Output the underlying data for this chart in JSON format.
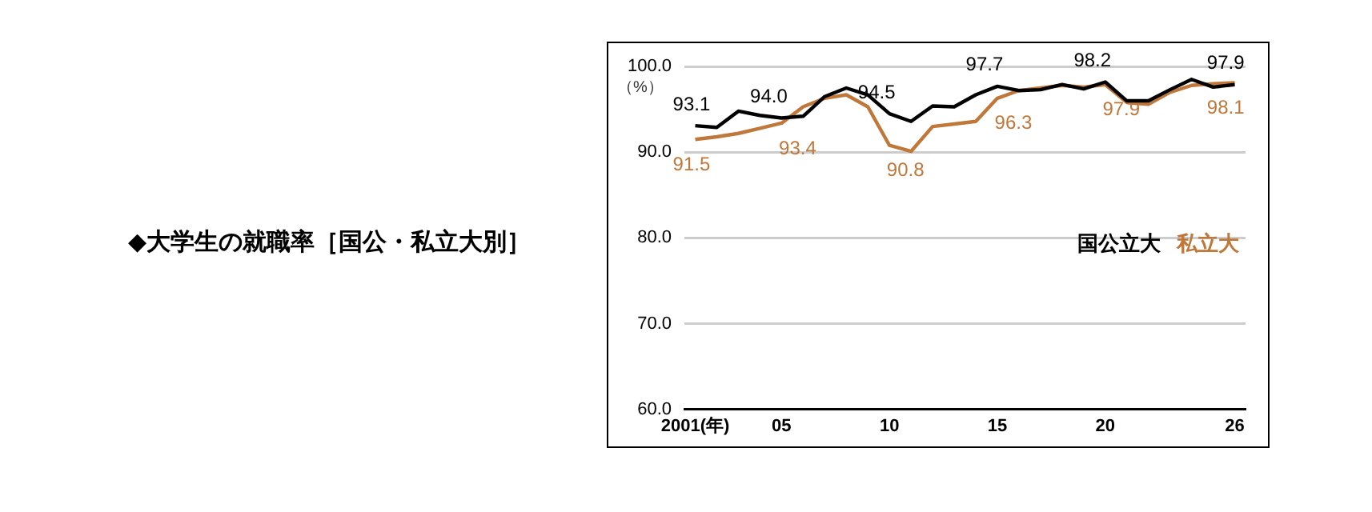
{
  "chart_data": {
    "type": "line",
    "title": "◆大学生の就職率［国公・私立大別］",
    "ylabel": "（%）",
    "categories": [
      "2001(年)",
      null,
      null,
      null,
      "05",
      null,
      null,
      null,
      null,
      "10",
      null,
      null,
      null,
      null,
      "15",
      null,
      null,
      null,
      null,
      "20",
      null,
      null,
      null,
      null,
      null,
      "26"
    ],
    "series": [
      {
        "name": "国公立大",
        "color": "#000000",
        "values": [
          93.1,
          92.9,
          94.8,
          94.3,
          94.0,
          94.2,
          96.5,
          97.5,
          96.7,
          94.5,
          93.6,
          95.4,
          95.3,
          96.7,
          97.7,
          97.2,
          97.3,
          97.9,
          97.4,
          98.2,
          96.0,
          96.0,
          97.3,
          98.5,
          97.6,
          97.9
        ],
        "value_labels": [
          "93.1",
          null,
          null,
          null,
          "94.0",
          null,
          null,
          null,
          null,
          "94.5",
          null,
          null,
          null,
          null,
          "97.7",
          null,
          null,
          null,
          null,
          "98.2",
          null,
          null,
          null,
          null,
          null,
          "97.9"
        ]
      },
      {
        "name": "私立大",
        "color": "#c0773a",
        "values": [
          91.5,
          91.8,
          92.2,
          92.8,
          93.4,
          95.3,
          96.3,
          96.7,
          95.3,
          90.8,
          90.1,
          93.0,
          93.3,
          93.6,
          96.3,
          97.2,
          97.5,
          97.8,
          97.6,
          97.9,
          95.8,
          95.6,
          97.0,
          97.8,
          98.0,
          98.1
        ],
        "value_labels": [
          "91.5",
          null,
          null,
          null,
          "93.4",
          null,
          null,
          null,
          null,
          "90.8",
          null,
          null,
          null,
          null,
          "96.3",
          null,
          null,
          null,
          null,
          "97.9",
          null,
          null,
          null,
          null,
          null,
          "98.1"
        ]
      }
    ],
    "ylim": [
      60,
      100
    ],
    "yticks": [
      {
        "value": 60,
        "label": "60.0"
      },
      {
        "value": 70,
        "label": "70.0"
      },
      {
        "value": 80,
        "label": "80.0"
      },
      {
        "value": 90,
        "label": "90.0"
      },
      {
        "value": 100,
        "label": "100.0"
      }
    ],
    "grid": "y",
    "legend": "right",
    "marker": "none",
    "line_style": "solid"
  }
}
